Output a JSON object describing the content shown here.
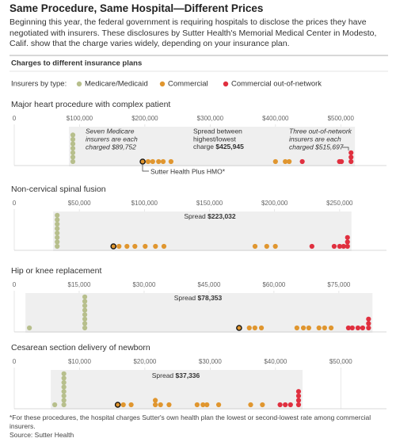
{
  "header": {
    "title": "Same Procedure, Same Hospital—Different Prices",
    "subtitle": "Beginning this year, the federal government is requiring hospitals to disclose the prices they have negotiated with insurers. These disclosures by Sutter Health's Memorial Medical Center in Modesto, Calif. show that the charge varies widely, depending on your insurance plan.",
    "section": "Charges to different insurance plans",
    "legend_label": "Insurers by type:"
  },
  "chart_data": [
    {
      "type": "strip",
      "title": "Major heart procedure with complex patient",
      "xlim": [
        0,
        570000
      ],
      "xticks": [
        0,
        {
          "value": 100000,
          "label": "$100,000"
        },
        {
          "value": 200000,
          "label": "$200,000"
        },
        {
          "value": 300000,
          "label": "$300,000"
        },
        {
          "value": 400000,
          "label": "$400,000"
        },
        {
          "value": 500000,
          "label": "$500,000"
        }
      ],
      "highlight_index": 0,
      "series": [
        {
          "name": "Medicare/Medicaid",
          "color": "#b7bf8c",
          "values": [
            89752,
            89752,
            89752,
            89752,
            89752,
            89752,
            89752
          ]
        },
        {
          "name": "Commercial",
          "color": "#e0962f",
          "values": [
            196600,
            205000,
            212000,
            221000,
            228000,
            240000,
            400000,
            415000,
            421000
          ]
        },
        {
          "name": "Commercial out-of-network",
          "color": "#e0303f",
          "values": [
            441000,
            498000,
            501000,
            515697,
            515697,
            515697
          ]
        }
      ],
      "annotations": [
        "Seven Medicare",
        "insurers are each",
        "charged $89,752",
        "Spread between",
        "highest/lowest",
        "charge",
        "$425,945",
        "Three out-of-network",
        "insurers are each",
        "charged $515,697",
        "Sutter Health Plus HMO*"
      ]
    },
    {
      "type": "strip",
      "title": "Non-cervical spinal fusion",
      "xlim": [
        0,
        286000
      ],
      "xticks": [
        0,
        {
          "value": 50000,
          "label": "$50,000"
        },
        {
          "value": 100000,
          "label": "$100,000"
        },
        {
          "value": 150000,
          "label": "$150,000"
        },
        {
          "value": 200000,
          "label": "$200,000"
        },
        {
          "value": 250000,
          "label": "$250,000"
        }
      ],
      "highlight_index": 0,
      "series": [
        {
          "name": "Medicare/Medicaid",
          "color": "#b7bf8c",
          "values": [
            33000,
            33000,
            33000,
            33000,
            33000,
            33000,
            33000,
            33000
          ]
        },
        {
          "name": "Commercial",
          "color": "#e0962f",
          "values": [
            76200,
            80500,
            86600,
            92700,
            100600,
            108500,
            115000,
            185000,
            194000,
            200600
          ]
        },
        {
          "name": "Commercial out-of-network",
          "color": "#e0303f",
          "values": [
            228700,
            245800,
            250000,
            253000,
            256032,
            256032,
            256032
          ]
        }
      ],
      "annotations": [
        "Spread",
        "$223,032"
      ]
    },
    {
      "type": "strip",
      "title": "Hip or knee replacement",
      "xlim": [
        0,
        86000
      ],
      "xticks": [
        0,
        {
          "value": 15000,
          "label": "$15,000"
        },
        {
          "value": 30000,
          "label": "$30,000"
        },
        {
          "value": 45000,
          "label": "$45,000"
        },
        {
          "value": 60000,
          "label": "$60,000"
        },
        {
          "value": 75000,
          "label": "$75,000"
        }
      ],
      "highlight_index": 0,
      "series": [
        {
          "name": "Medicare/Medicaid",
          "color": "#b7bf8c",
          "values": [
            3500,
            16300,
            16300,
            16300,
            16300,
            16300,
            16300,
            16300,
            16300
          ]
        },
        {
          "name": "Commercial",
          "color": "#e0962f",
          "values": [
            51950,
            54300,
            55600,
            57100,
            65300,
            66800,
            68050,
            70400,
            71700,
            73200
          ]
        },
        {
          "name": "Commercial out-of-network",
          "color": "#e0303f",
          "values": [
            77200,
            78100,
            79400,
            80500,
            81853,
            81853,
            81853
          ]
        }
      ],
      "annotations": [
        "Spread",
        "$78,353"
      ]
    },
    {
      "type": "strip",
      "title": "Cesarean section delivery of newborn",
      "xlim": [
        0,
        57000
      ],
      "xticks": [
        0,
        {
          "value": 10000,
          "label": "$10,000"
        },
        {
          "value": 20000,
          "label": "$20,000"
        },
        {
          "value": 30000,
          "label": "$30,000"
        },
        {
          "value": 40000,
          "label": "$40,000"
        },
        {
          "value": 50000,
          "label": "$50,000"
        }
      ],
      "highlight_index": 0,
      "series": [
        {
          "name": "Medicare/Medicaid",
          "color": "#b7bf8c",
          "values": [
            6200,
            7600,
            7600,
            7600,
            7600,
            7600,
            7600,
            7600,
            7600
          ]
        },
        {
          "name": "Commercial",
          "color": "#e0962f",
          "values": [
            15850,
            16700,
            17900,
            21600,
            21600,
            22400,
            23700,
            28000,
            28900,
            29500,
            31300,
            36200,
            38000
          ]
        },
        {
          "name": "Commercial out-of-network",
          "color": "#e0303f",
          "values": [
            40700,
            41500,
            42300,
            43536,
            43536,
            43536,
            43536
          ]
        }
      ],
      "annotations": [
        "Spread",
        "$37,336"
      ]
    }
  ],
  "footnote": "*For these procedures, the hospital charges Sutter's own health plan the lowest or second-lowest rate among commercial insurers.",
  "source": "Source: Sutter Health"
}
